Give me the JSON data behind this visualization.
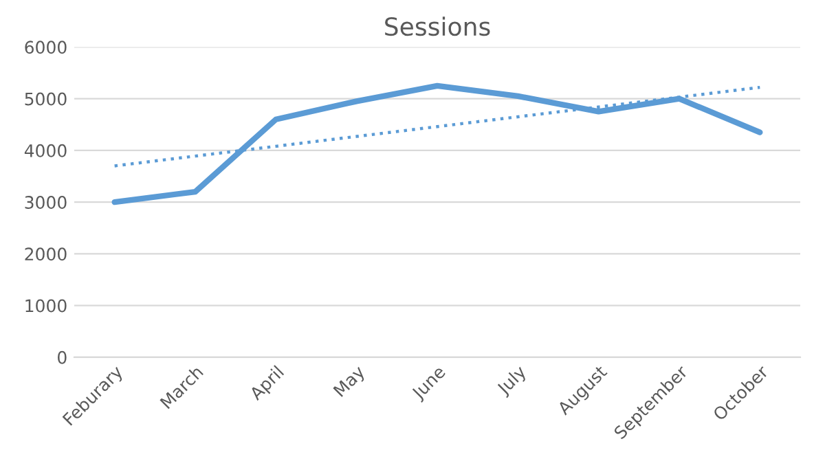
{
  "chart_data": {
    "type": "line",
    "title": "Sessions",
    "categories": [
      "Feburary",
      "March",
      "April",
      "May",
      "June",
      "July",
      "August",
      "September",
      "October"
    ],
    "series": [
      {
        "color": "#5b9bd5",
        "values": [
          3000,
          3200,
          4600,
          4950,
          5250,
          5050,
          4750,
          5000,
          4350
        ],
        "line_style": "solid"
      },
      {
        "color": "#5b9bd5",
        "values": [
          3700,
          3890,
          4080,
          4270,
          4460,
          4650,
          4840,
          5030,
          5220
        ],
        "line_style": "dotted"
      }
    ],
    "ylim": [
      0,
      6000
    ],
    "yticks": [
      0,
      1000,
      2000,
      3000,
      4000,
      5000,
      6000
    ],
    "grid": "y",
    "marker": "none"
  }
}
